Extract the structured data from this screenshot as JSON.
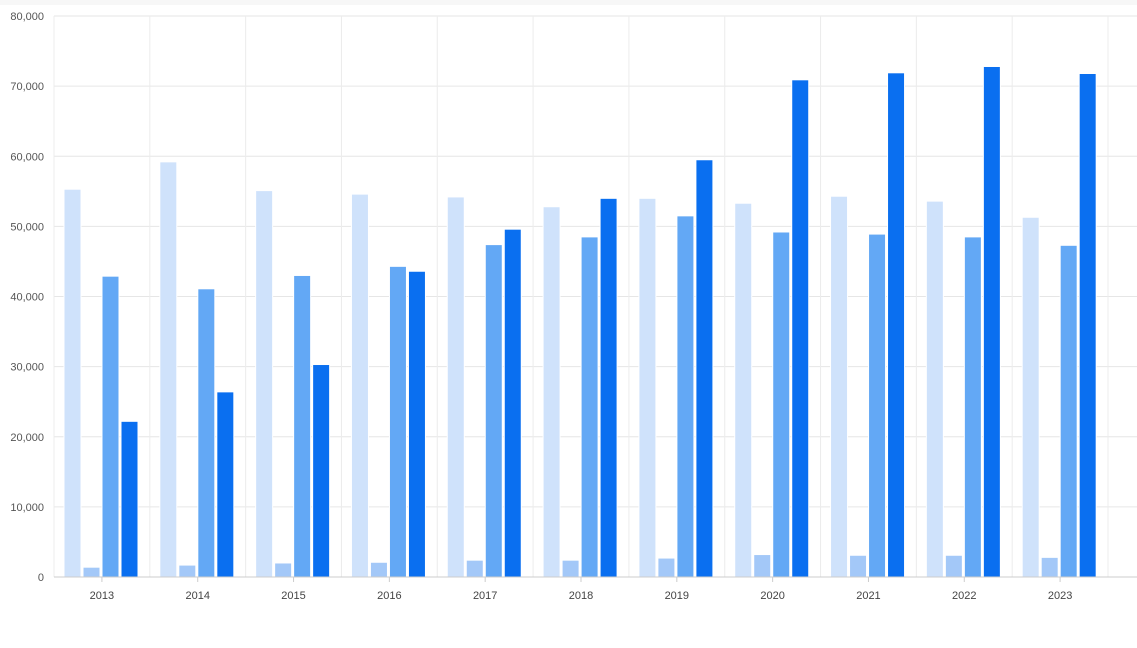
{
  "chart_data": {
    "type": "bar",
    "title": "",
    "xlabel": "",
    "ylabel": "",
    "ylim": [
      0,
      80000
    ],
    "y_ticks": [
      0,
      10000,
      20000,
      30000,
      40000,
      50000,
      60000,
      70000,
      80000
    ],
    "y_tick_labels": [
      "0",
      "10,000",
      "20,000",
      "30,000",
      "40,000",
      "50,000",
      "60,000",
      "70,000",
      "80,000"
    ],
    "grid": true,
    "legend": "none",
    "categories": [
      "2013",
      "2014",
      "2015",
      "2016",
      "2017",
      "2018",
      "2019",
      "2020",
      "2021",
      "2022",
      "2023"
    ],
    "series": [
      {
        "color": "#cfe2fb",
        "values": [
          55300,
          59200,
          55100,
          54600,
          54200,
          52800,
          54000,
          53300,
          54300,
          53600,
          51300
        ]
      },
      {
        "color": "#a3c8f8",
        "values": [
          1400,
          1700,
          2000,
          2100,
          2400,
          2400,
          2700,
          3200,
          3100,
          3100,
          2800
        ]
      },
      {
        "color": "#63a8f5",
        "values": [
          42900,
          41100,
          43000,
          44300,
          47400,
          48500,
          51500,
          49200,
          48900,
          48500,
          47300
        ]
      },
      {
        "color": "#0a6ff0",
        "values": [
          22200,
          26400,
          30300,
          43600,
          49600,
          54000,
          59500,
          70900,
          71900,
          72800,
          71800
        ]
      }
    ]
  }
}
